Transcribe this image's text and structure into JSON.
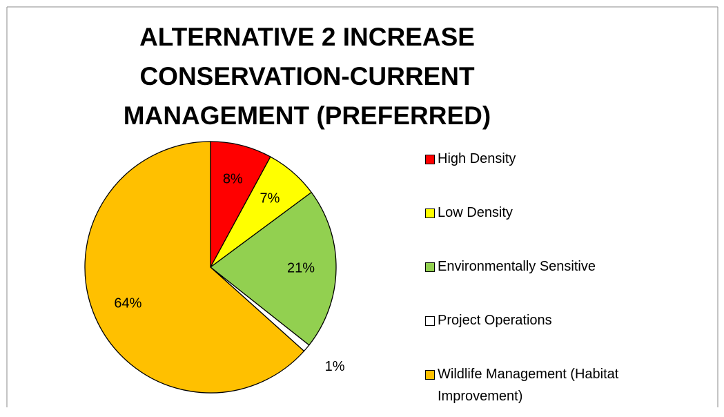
{
  "chart_data": {
    "type": "pie",
    "title": "ALTERNATIVE 2 INCREASE CONSERVATION-CURRENT MANAGEMENT (PREFERRED)",
    "categories": [
      "High Density",
      "Low Density",
      "Environmentally Sensitive",
      "Project Operations",
      "Wildlife Management (Habitat Improvement)"
    ],
    "values": [
      8,
      7,
      21,
      1,
      64
    ],
    "value_labels": [
      "8%",
      "7%",
      "21%",
      "1%",
      "64%"
    ],
    "colors": [
      "#ff0000",
      "#ffff00",
      "#92d050",
      "#ffffff",
      "#ffc000"
    ],
    "legend": "right"
  }
}
